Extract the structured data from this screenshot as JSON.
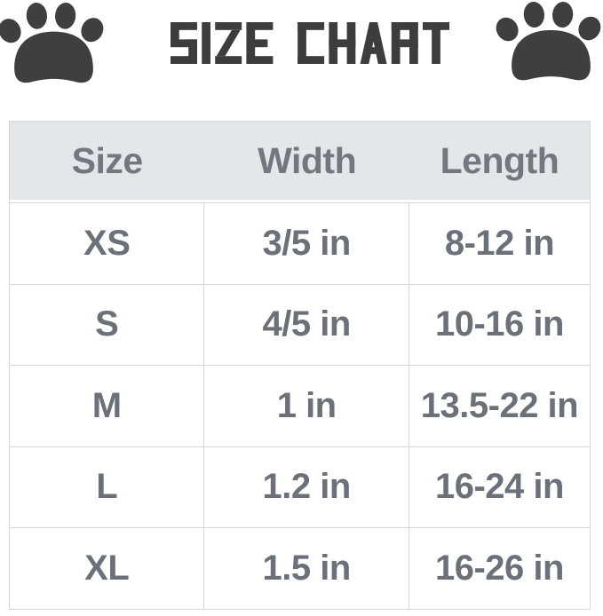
{
  "title": {
    "text": "SIZE CHART"
  },
  "colors": {
    "title": "#3d3d3d",
    "paw": "#3f3f3f",
    "header_bg": "#e4e7ea",
    "header_text": "#73777f",
    "cell_text": "#6b7079",
    "border": "#d5d8db",
    "bg": "#ffffff"
  },
  "icons": {
    "left": "paw-icon",
    "right": "paw-icon"
  },
  "table": {
    "headers": {
      "size": "Size",
      "width": "Width",
      "length": "Length"
    },
    "rows": [
      {
        "size": "XS",
        "width": "3/5 in",
        "length": "8-12 in"
      },
      {
        "size": "S",
        "width": "4/5 in",
        "length": "10-16 in"
      },
      {
        "size": "M",
        "width": "1 in",
        "length": "13.5-22 in"
      },
      {
        "size": "L",
        "width": "1.2 in",
        "length": "16-24 in"
      },
      {
        "size": "XL",
        "width": "1.5 in",
        "length": "16-26 in"
      }
    ]
  },
  "chart_data": {
    "type": "table",
    "title": "SIZE CHART",
    "columns": [
      "Size",
      "Width",
      "Length"
    ],
    "rows": [
      [
        "XS",
        "3/5 in",
        "8-12 in"
      ],
      [
        "S",
        "4/5 in",
        "10-16 in"
      ],
      [
        "M",
        "1 in",
        "13.5-22 in"
      ],
      [
        "L",
        "1.2 in",
        "16-24 in"
      ],
      [
        "XL",
        "1.5 in",
        "16-26 in"
      ]
    ]
  }
}
